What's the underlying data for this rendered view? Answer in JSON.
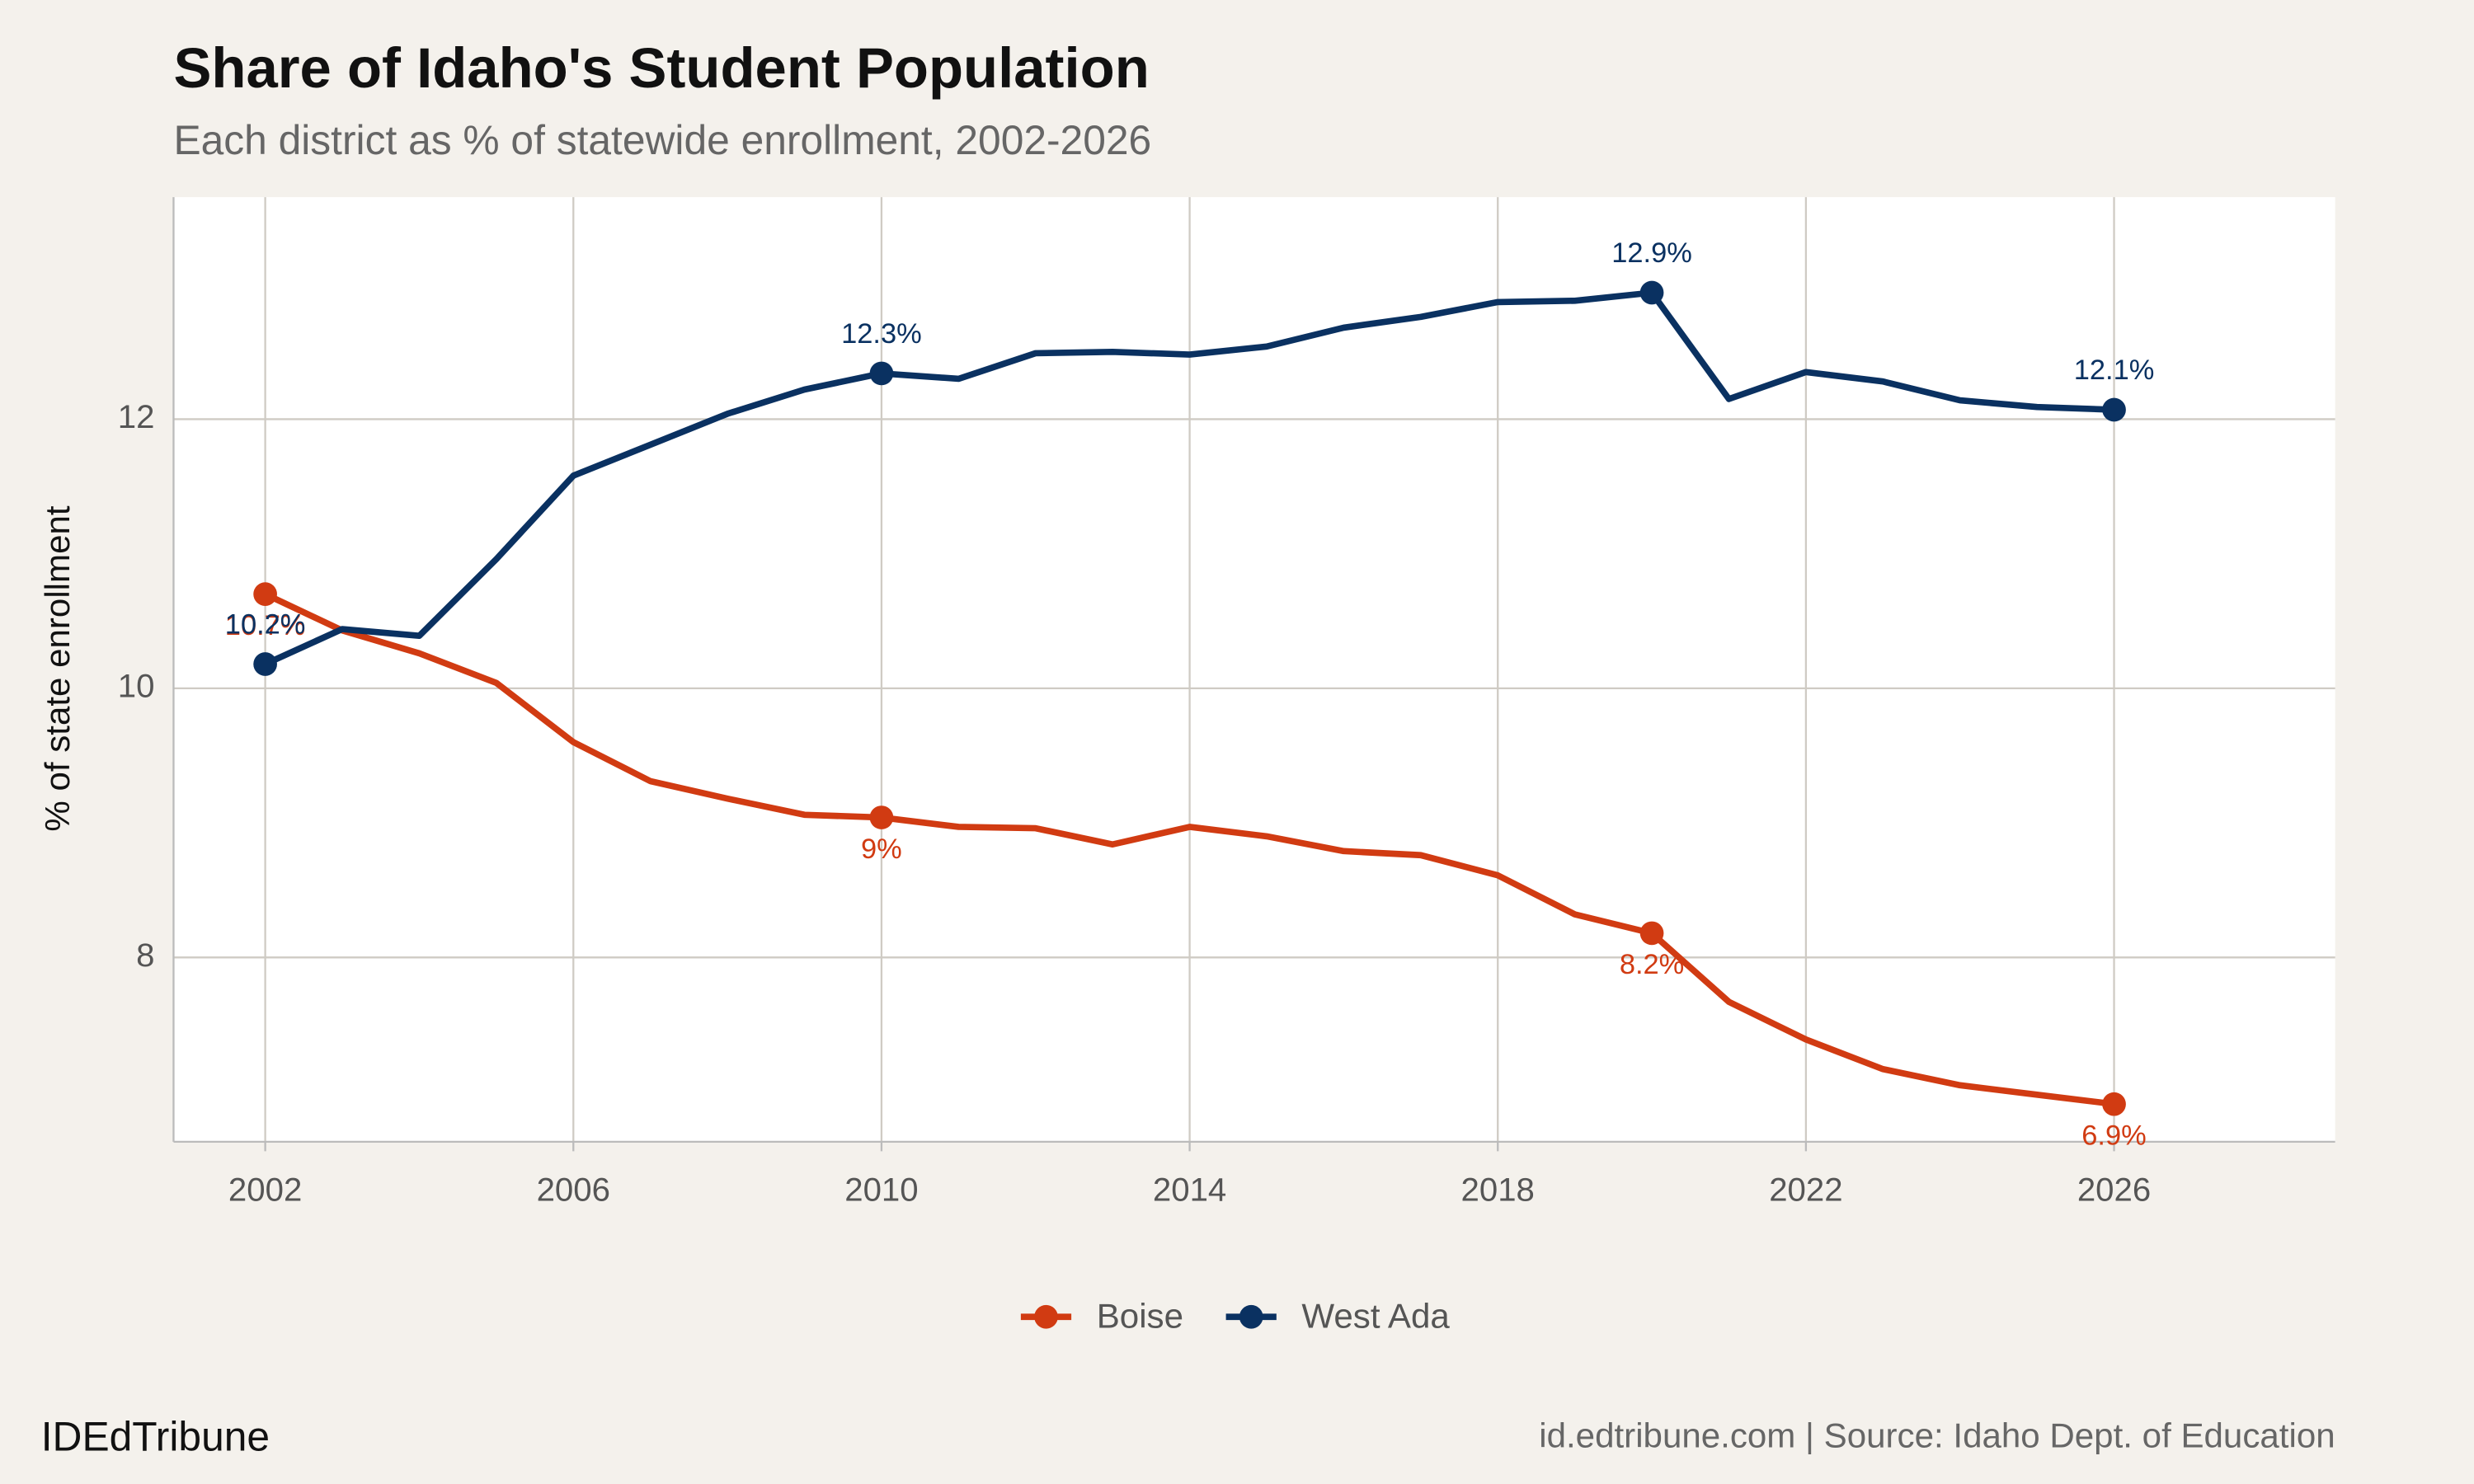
{
  "chart_data": {
    "type": "line",
    "title": "Share of Idaho's Student Population",
    "subtitle": "Each district as % of statewide enrollment, 2002-2026",
    "y_label": "% of state enrollment",
    "branding": "IDEdTribune",
    "source": "id.edtribune.com | Source: Idaho Dept. of Education",
    "legend_position": "bottom",
    "grid": true,
    "x": [
      2002,
      2003,
      2004,
      2005,
      2006,
      2007,
      2008,
      2009,
      2010,
      2011,
      2012,
      2013,
      2014,
      2015,
      2016,
      2017,
      2018,
      2019,
      2020,
      2021,
      2022,
      2023,
      2024,
      2025,
      2026
    ],
    "xlim": [
      2000.81,
      2028.87
    ],
    "xticks": [
      2002,
      2006,
      2010,
      2014,
      2018,
      2022,
      2026
    ],
    "ylim": [
      6.63,
      13.65
    ],
    "yticks": [
      8,
      10,
      12
    ],
    "series": [
      {
        "name": "Boise",
        "color": "#d13b12",
        "values": [
          10.7,
          10.43,
          10.26,
          10.04,
          9.6,
          9.31,
          9.18,
          9.06,
          9.04,
          8.97,
          8.96,
          8.84,
          8.97,
          8.9,
          8.79,
          8.76,
          8.61,
          8.32,
          8.18,
          7.67,
          7.39,
          7.17,
          7.05,
          6.98,
          6.91
        ],
        "value_labels": [
          "10.7%",
          null,
          null,
          null,
          null,
          null,
          null,
          null,
          "9%",
          null,
          null,
          null,
          null,
          null,
          null,
          null,
          null,
          null,
          "8.2%",
          null,
          null,
          null,
          null,
          null,
          "6.9%"
        ]
      },
      {
        "name": "West Ada",
        "color": "#0a3161",
        "values": [
          10.18,
          10.44,
          10.39,
          10.96,
          11.58,
          11.81,
          12.04,
          12.22,
          12.34,
          12.3,
          12.49,
          12.5,
          12.48,
          12.54,
          12.68,
          12.76,
          12.87,
          12.88,
          12.94,
          12.15,
          12.35,
          12.28,
          12.14,
          12.09,
          12.07
        ],
        "value_labels": [
          "10.2%",
          null,
          null,
          null,
          null,
          null,
          null,
          null,
          "12.3%",
          null,
          null,
          null,
          null,
          null,
          null,
          null,
          null,
          null,
          "12.9%",
          null,
          null,
          null,
          null,
          null,
          "12.1%"
        ]
      }
    ]
  }
}
